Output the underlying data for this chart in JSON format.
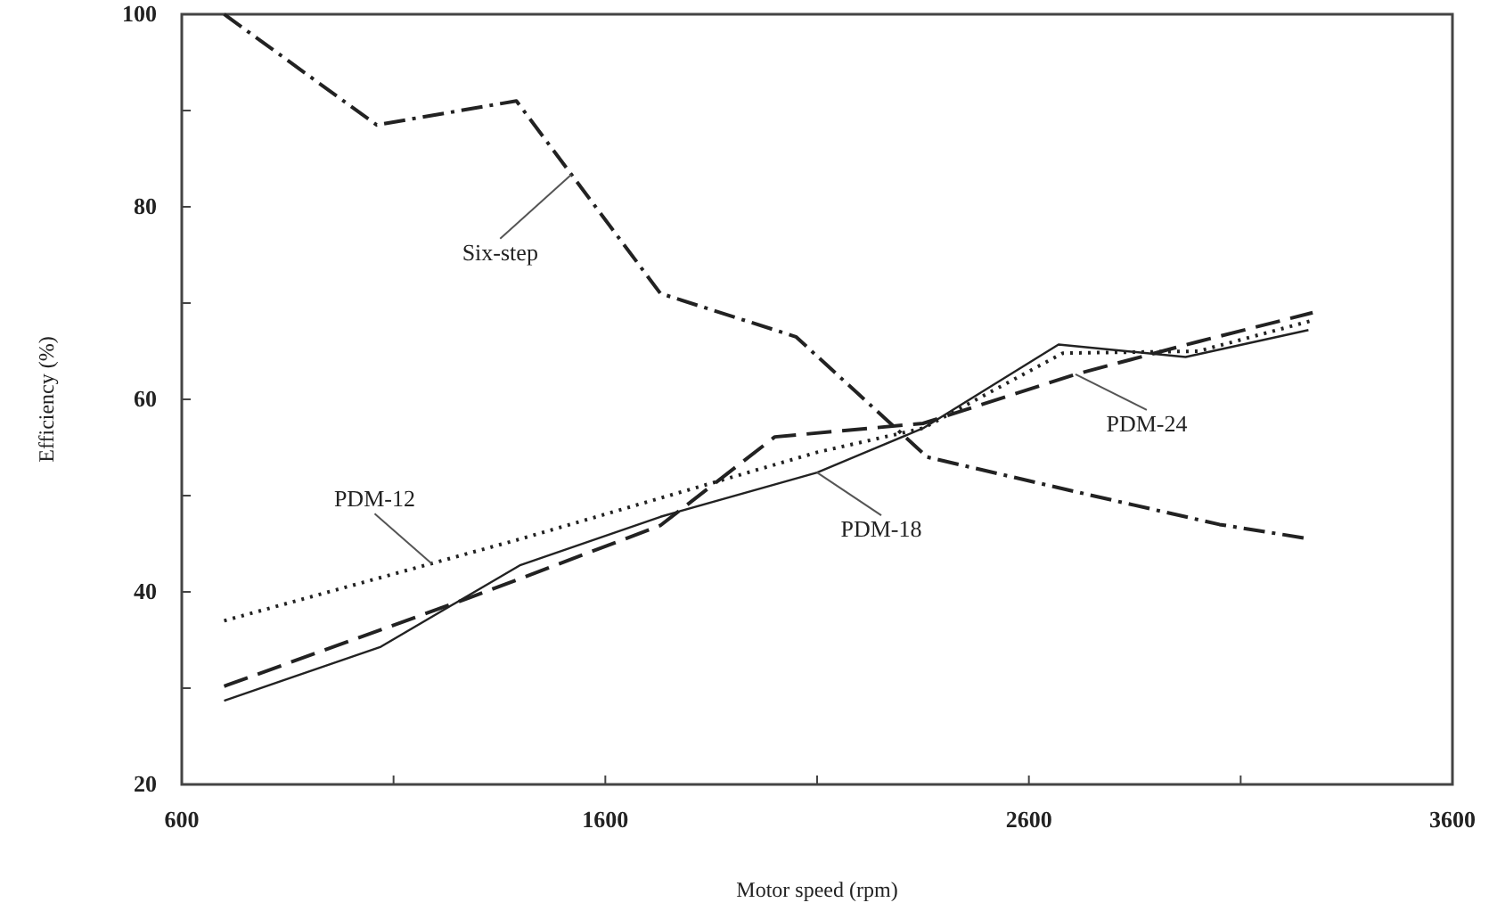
{
  "chart_data": {
    "type": "line",
    "xlabel": "Motor speed (rpm)",
    "ylabel": "Efficiency (%)",
    "xlim": [
      600,
      3600
    ],
    "xticks": [
      600,
      {
        "value": 1100,
        "label": null
      },
      1600,
      {
        "value": 2100,
        "label": null
      },
      2600,
      {
        "value": 3100,
        "label": null
      },
      3600
    ],
    "ylim": [
      20,
      100
    ],
    "yticks": [
      20,
      {
        "value": 30,
        "label": null
      },
      40,
      {
        "value": 50,
        "label": null
      },
      60,
      {
        "value": 70,
        "label": null
      },
      80,
      {
        "value": 90,
        "label": null
      },
      100
    ],
    "grid": false,
    "marker": "none",
    "series": [
      {
        "name": "Six-step",
        "color": "#222222",
        "line_style": "dashdot",
        "x": [
          700,
          1060,
          1390,
          1730,
          2050,
          2360,
          2750,
          3050,
          3250
        ],
        "values": [
          100,
          88.5,
          91,
          71,
          66.5,
          54,
          50,
          47,
          45.6
        ]
      },
      {
        "name": "PDM-12",
        "color": "#222222",
        "line_style": "dotted",
        "x": [
          700,
          1400,
          2100,
          2350,
          2680,
          3000,
          3270
        ],
        "values": [
          37,
          45.5,
          54.5,
          57,
          64.8,
          65,
          68.2
        ]
      },
      {
        "name": "PDM-18",
        "color": "#222222",
        "line_style": "solid",
        "x": [
          700,
          1070,
          1400,
          1730,
          2100,
          2350,
          2670,
          2970,
          3260
        ],
        "values": [
          28.7,
          34.3,
          42.8,
          47.8,
          52.4,
          57,
          65.7,
          64.4,
          67.2
        ]
      },
      {
        "name": "PDM-24",
        "color": "#222222",
        "line_style": "dashed",
        "x": [
          700,
          1280,
          1730,
          2000,
          2350,
          2710,
          3000,
          3270
        ],
        "values": [
          30.2,
          39.4,
          46.9,
          56.1,
          57.5,
          62.6,
          66,
          69
        ]
      }
    ]
  }
}
